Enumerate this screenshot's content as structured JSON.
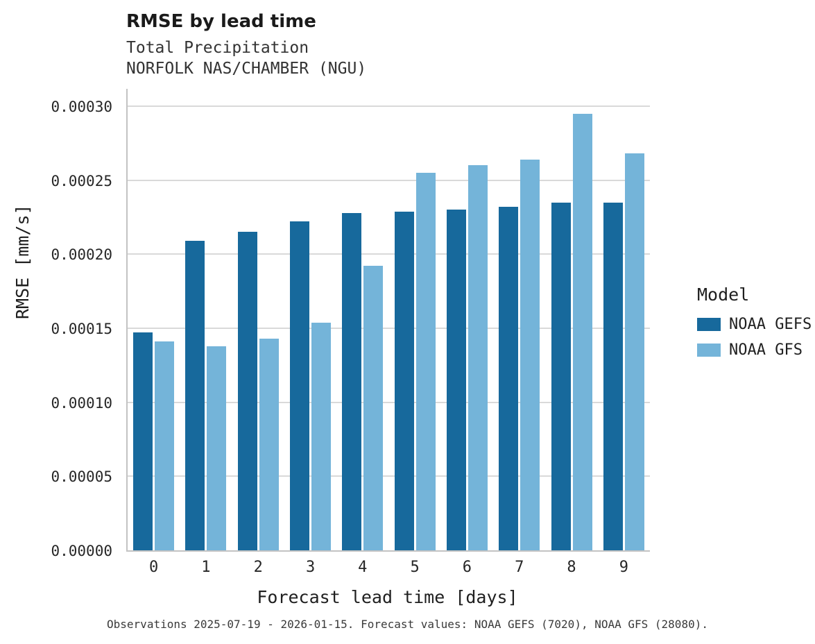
{
  "chart_data": {
    "type": "bar",
    "title": "RMSE by lead time",
    "subtitle_line1": "Total Precipitation",
    "subtitle_line2": "NORFOLK NAS/CHAMBER (NGU)",
    "xlabel": "Forecast lead time [days]",
    "ylabel": "RMSE [mm/s]",
    "categories": [
      "0",
      "1",
      "2",
      "3",
      "4",
      "5",
      "6",
      "7",
      "8",
      "9"
    ],
    "series": [
      {
        "name": "NOAA GEFS",
        "color": "#17699c",
        "values": [
          0.000147,
          0.000209,
          0.000215,
          0.000222,
          0.000228,
          0.000229,
          0.00023,
          0.000232,
          0.000235,
          0.000235
        ]
      },
      {
        "name": "NOAA GFS",
        "color": "#74b4d9",
        "values": [
          0.000141,
          0.000138,
          0.000143,
          0.000154,
          0.000192,
          0.000255,
          0.00026,
          0.000264,
          0.000295,
          0.000268
        ]
      }
    ],
    "ylim": [
      0,
      0.0003
    ],
    "yticks": [
      0,
      5e-05,
      0.0001,
      0.00015,
      0.0002,
      0.00025,
      0.0003
    ],
    "ytick_labels": [
      "0.00000",
      "0.00005",
      "0.00010",
      "0.00015",
      "0.00020",
      "0.00025",
      "0.00030"
    ],
    "grid": "horizontal",
    "legend_title": "Model",
    "legend_position": "right",
    "caption": "Observations 2025-07-19 - 2026-01-15. Forecast values: NOAA GEFS (7020), NOAA GFS (28080)."
  }
}
